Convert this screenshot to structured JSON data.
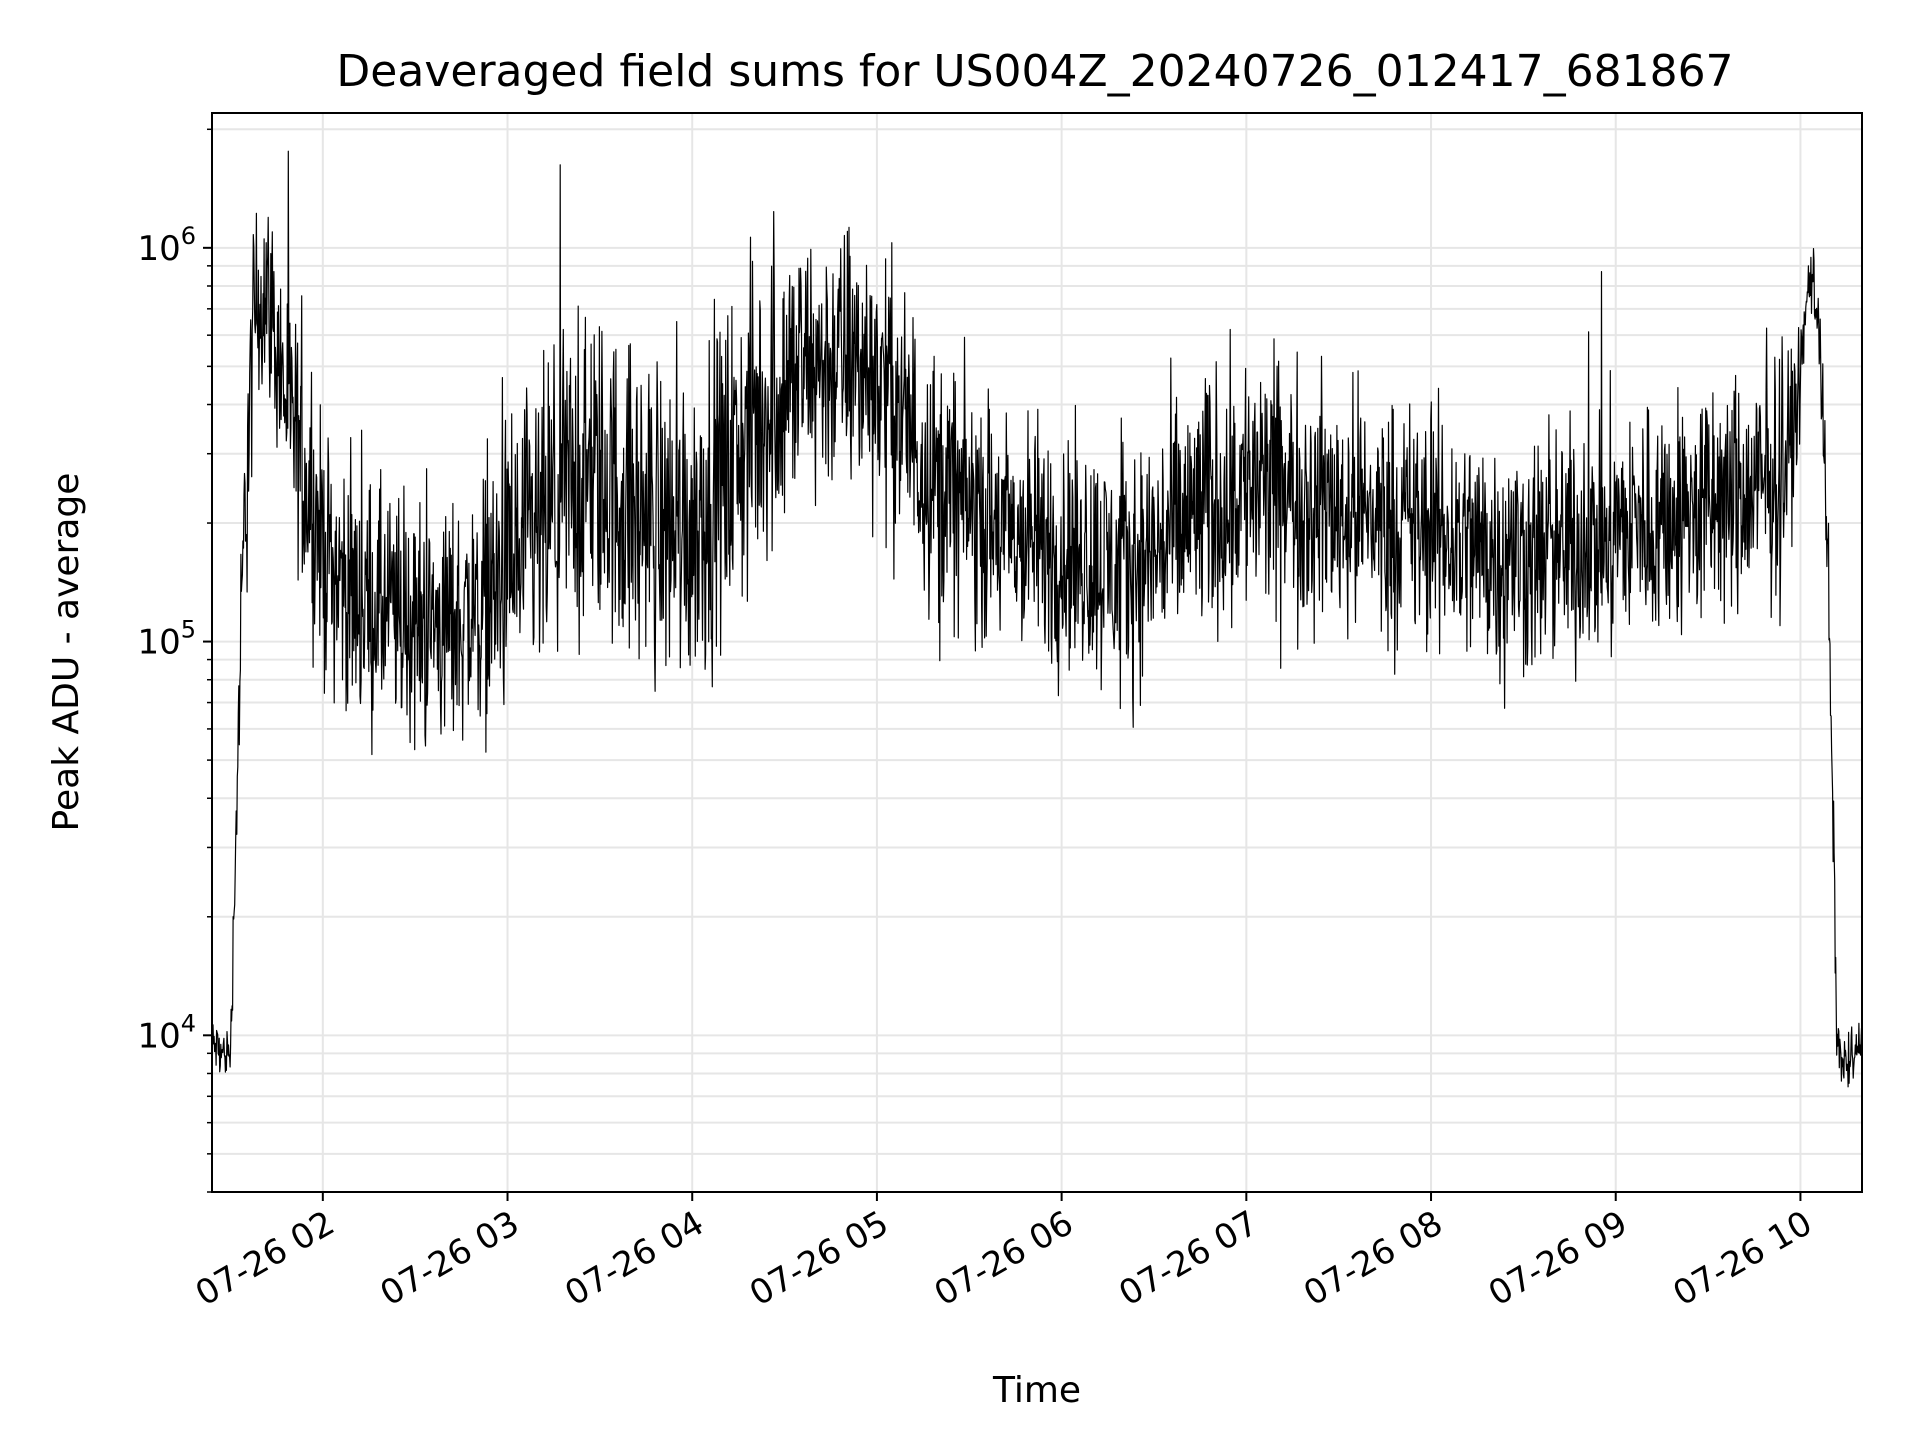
{
  "chart_data": {
    "type": "line",
    "title": "Deaveraged field sums for US004Z_20240726_012417_681867",
    "xlabel": "Time",
    "ylabel": "Peak ADU - average",
    "yscale": "log",
    "ylim": [
      4000,
      2200000
    ],
    "xlim": [
      "07-26 01:24",
      "07-26 10:20"
    ],
    "grid": "major and minor",
    "x_ticks": [
      "07-26 02",
      "07-26 03",
      "07-26 04",
      "07-26 05",
      "07-26 06",
      "07-26 07",
      "07-26 08",
      "07-26 09",
      "07-26 10"
    ],
    "y_ticks": [
      {
        "value": 10000,
        "base": "10",
        "exp": "4"
      },
      {
        "value": 100000,
        "base": "10",
        "exp": "5"
      },
      {
        "value": 1000000,
        "base": "10",
        "exp": "6"
      }
    ],
    "line_color": "#000000",
    "series": [
      {
        "x": [
          "07-26 01:24",
          "07-26 01:27",
          "07-26 01:30",
          "07-26 01:33",
          "07-26 01:35",
          "07-26 01:38",
          "07-26 01:42",
          "07-26 01:46",
          "07-26 01:50",
          "07-26 01:55",
          "07-26 02:00",
          "07-26 02:10",
          "07-26 02:20",
          "07-26 02:30",
          "07-26 02:40",
          "07-26 02:50",
          "07-26 03:00",
          "07-26 03:10",
          "07-26 03:20",
          "07-26 03:30",
          "07-26 03:40",
          "07-26 03:50",
          "07-26 04:00",
          "07-26 04:10",
          "07-26 04:20",
          "07-26 04:30",
          "07-26 04:40",
          "07-26 04:50",
          "07-26 05:00",
          "07-26 05:10",
          "07-26 05:20",
          "07-26 05:30",
          "07-26 05:40",
          "07-26 05:50",
          "07-26 06:00",
          "07-26 06:10",
          "07-26 06:20",
          "07-26 06:30",
          "07-26 06:40",
          "07-26 06:50",
          "07-26 07:00",
          "07-26 07:10",
          "07-26 07:20",
          "07-26 07:30",
          "07-26 07:40",
          "07-26 07:50",
          "07-26 08:00",
          "07-26 08:10",
          "07-26 08:20",
          "07-26 08:30",
          "07-26 08:40",
          "07-26 08:50",
          "07-26 09:00",
          "07-26 09:10",
          "07-26 09:20",
          "07-26 09:30",
          "07-26 09:40",
          "07-26 09:50",
          "07-26 09:55",
          "07-26 10:00",
          "07-26 10:03",
          "07-26 10:06",
          "07-26 10:09",
          "07-26 10:12",
          "07-26 10:15",
          "07-26 10:18",
          "07-26 10:20"
        ],
        "center": [
          9500,
          9000,
          9000,
          80000,
          250000,
          700000,
          800000,
          500000,
          350000,
          250000,
          170000,
          130000,
          120000,
          110000,
          110000,
          120000,
          150000,
          180000,
          250000,
          260000,
          220000,
          200000,
          200000,
          260000,
          350000,
          450000,
          500000,
          520000,
          480000,
          350000,
          250000,
          220000,
          190000,
          180000,
          170000,
          160000,
          150000,
          170000,
          200000,
          230000,
          250000,
          240000,
          230000,
          220000,
          210000,
          200000,
          190000,
          180000,
          170000,
          165000,
          170000,
          180000,
          190000,
          200000,
          210000,
          220000,
          230000,
          250000,
          280000,
          450000,
          900000,
          700000,
          150000,
          9000,
          8500,
          9000,
          9500
        ],
        "spread": [
          0.1,
          0.1,
          0.1,
          0.3,
          0.5,
          0.4,
          0.35,
          0.4,
          0.45,
          0.45,
          0.45,
          0.45,
          0.45,
          0.45,
          0.45,
          0.45,
          0.55,
          0.6,
          0.6,
          0.6,
          0.6,
          0.6,
          0.6,
          0.6,
          0.6,
          0.55,
          0.5,
          0.5,
          0.5,
          0.5,
          0.5,
          0.45,
          0.45,
          0.45,
          0.45,
          0.45,
          0.45,
          0.45,
          0.5,
          0.5,
          0.5,
          0.5,
          0.45,
          0.45,
          0.45,
          0.45,
          0.45,
          0.45,
          0.45,
          0.45,
          0.45,
          0.45,
          0.45,
          0.45,
          0.45,
          0.45,
          0.45,
          0.45,
          0.45,
          0.2,
          0.15,
          0.2,
          0.3,
          0.12,
          0.12,
          0.12,
          0.12
        ]
      }
    ]
  }
}
